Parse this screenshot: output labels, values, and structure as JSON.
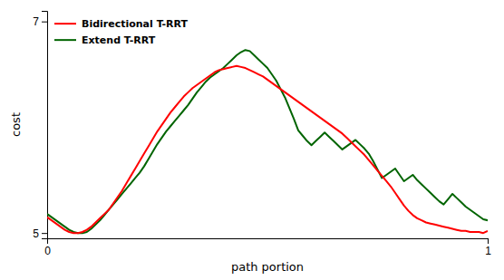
{
  "chart_data": {
    "type": "line",
    "xlabel": "path portion",
    "ylabel": "cost",
    "xlim": [
      0,
      1
    ],
    "ylim": [
      4.95,
      7.1
    ],
    "xticks": [
      0,
      1
    ],
    "yticks": [
      5,
      7
    ],
    "legend": "upper left",
    "x": [
      0,
      0.01,
      0.02,
      0.03,
      0.04,
      0.05,
      0.06,
      0.07,
      0.08,
      0.09,
      0.1,
      0.11,
      0.12,
      0.13,
      0.14,
      0.15,
      0.16,
      0.17,
      0.18,
      0.19,
      0.2,
      0.21,
      0.22,
      0.23,
      0.24,
      0.25,
      0.26,
      0.27,
      0.28,
      0.29,
      0.3,
      0.31,
      0.32,
      0.33,
      0.34,
      0.35,
      0.36,
      0.37,
      0.38,
      0.39,
      0.4,
      0.41,
      0.42,
      0.43,
      0.44,
      0.45,
      0.46,
      0.47,
      0.48,
      0.49,
      0.5,
      0.51,
      0.52,
      0.53,
      0.54,
      0.55,
      0.56,
      0.57,
      0.58,
      0.59,
      0.6,
      0.61,
      0.62,
      0.63,
      0.64,
      0.65,
      0.66,
      0.67,
      0.68,
      0.69,
      0.7,
      0.71,
      0.72,
      0.73,
      0.74,
      0.75,
      0.76,
      0.77,
      0.78,
      0.79,
      0.8,
      0.81,
      0.82,
      0.83,
      0.84,
      0.85,
      0.86,
      0.87,
      0.88,
      0.89,
      0.9,
      0.91,
      0.92,
      0.93,
      0.94,
      0.95,
      0.96,
      0.97,
      0.98,
      0.99,
      1
    ],
    "series": [
      {
        "name": "Bidirectional T-RRT",
        "color": "#ff0000",
        "values": [
          5.15,
          5.12,
          5.09,
          5.06,
          5.03,
          5.01,
          5.0,
          5.0,
          5.01,
          5.03,
          5.06,
          5.1,
          5.14,
          5.18,
          5.22,
          5.28,
          5.34,
          5.4,
          5.47,
          5.54,
          5.61,
          5.68,
          5.75,
          5.82,
          5.89,
          5.96,
          6.02,
          6.08,
          6.14,
          6.19,
          6.24,
          6.29,
          6.33,
          6.37,
          6.4,
          6.43,
          6.46,
          6.49,
          6.52,
          6.54,
          6.55,
          6.56,
          6.57,
          6.58,
          6.57,
          6.56,
          6.54,
          6.52,
          6.5,
          6.48,
          6.45,
          6.42,
          6.39,
          6.36,
          6.33,
          6.3,
          6.27,
          6.24,
          6.21,
          6.18,
          6.15,
          6.12,
          6.09,
          6.06,
          6.03,
          6.0,
          5.97,
          5.94,
          5.9,
          5.86,
          5.82,
          5.78,
          5.74,
          5.69,
          5.64,
          5.59,
          5.54,
          5.49,
          5.44,
          5.38,
          5.32,
          5.26,
          5.21,
          5.17,
          5.14,
          5.12,
          5.1,
          5.09,
          5.08,
          5.07,
          5.06,
          5.05,
          5.04,
          5.03,
          5.02,
          5.02,
          5.01,
          5.01,
          5.01,
          5.0,
          5.02
        ]
      },
      {
        "name": "Extend T-RRT",
        "color": "#006400",
        "values": [
          5.18,
          5.15,
          5.12,
          5.09,
          5.06,
          5.03,
          5.01,
          5.0,
          5.0,
          5.01,
          5.04,
          5.08,
          5.12,
          5.17,
          5.22,
          5.27,
          5.32,
          5.37,
          5.42,
          5.47,
          5.52,
          5.57,
          5.63,
          5.7,
          5.77,
          5.84,
          5.9,
          5.96,
          6.01,
          6.06,
          6.11,
          6.16,
          6.21,
          6.27,
          6.33,
          6.38,
          6.43,
          6.47,
          6.5,
          6.53,
          6.56,
          6.6,
          6.64,
          6.68,
          6.71,
          6.73,
          6.72,
          6.68,
          6.64,
          6.6,
          6.56,
          6.5,
          6.44,
          6.36,
          6.28,
          6.18,
          6.08,
          5.97,
          5.92,
          5.87,
          5.83,
          5.87,
          5.91,
          5.95,
          5.91,
          5.87,
          5.83,
          5.79,
          5.82,
          5.85,
          5.88,
          5.84,
          5.8,
          5.75,
          5.68,
          5.6,
          5.52,
          5.55,
          5.58,
          5.61,
          5.55,
          5.49,
          5.52,
          5.55,
          5.5,
          5.46,
          5.42,
          5.38,
          5.34,
          5.3,
          5.27,
          5.32,
          5.37,
          5.33,
          5.29,
          5.25,
          5.22,
          5.19,
          5.16,
          5.13,
          5.12
        ]
      }
    ]
  }
}
